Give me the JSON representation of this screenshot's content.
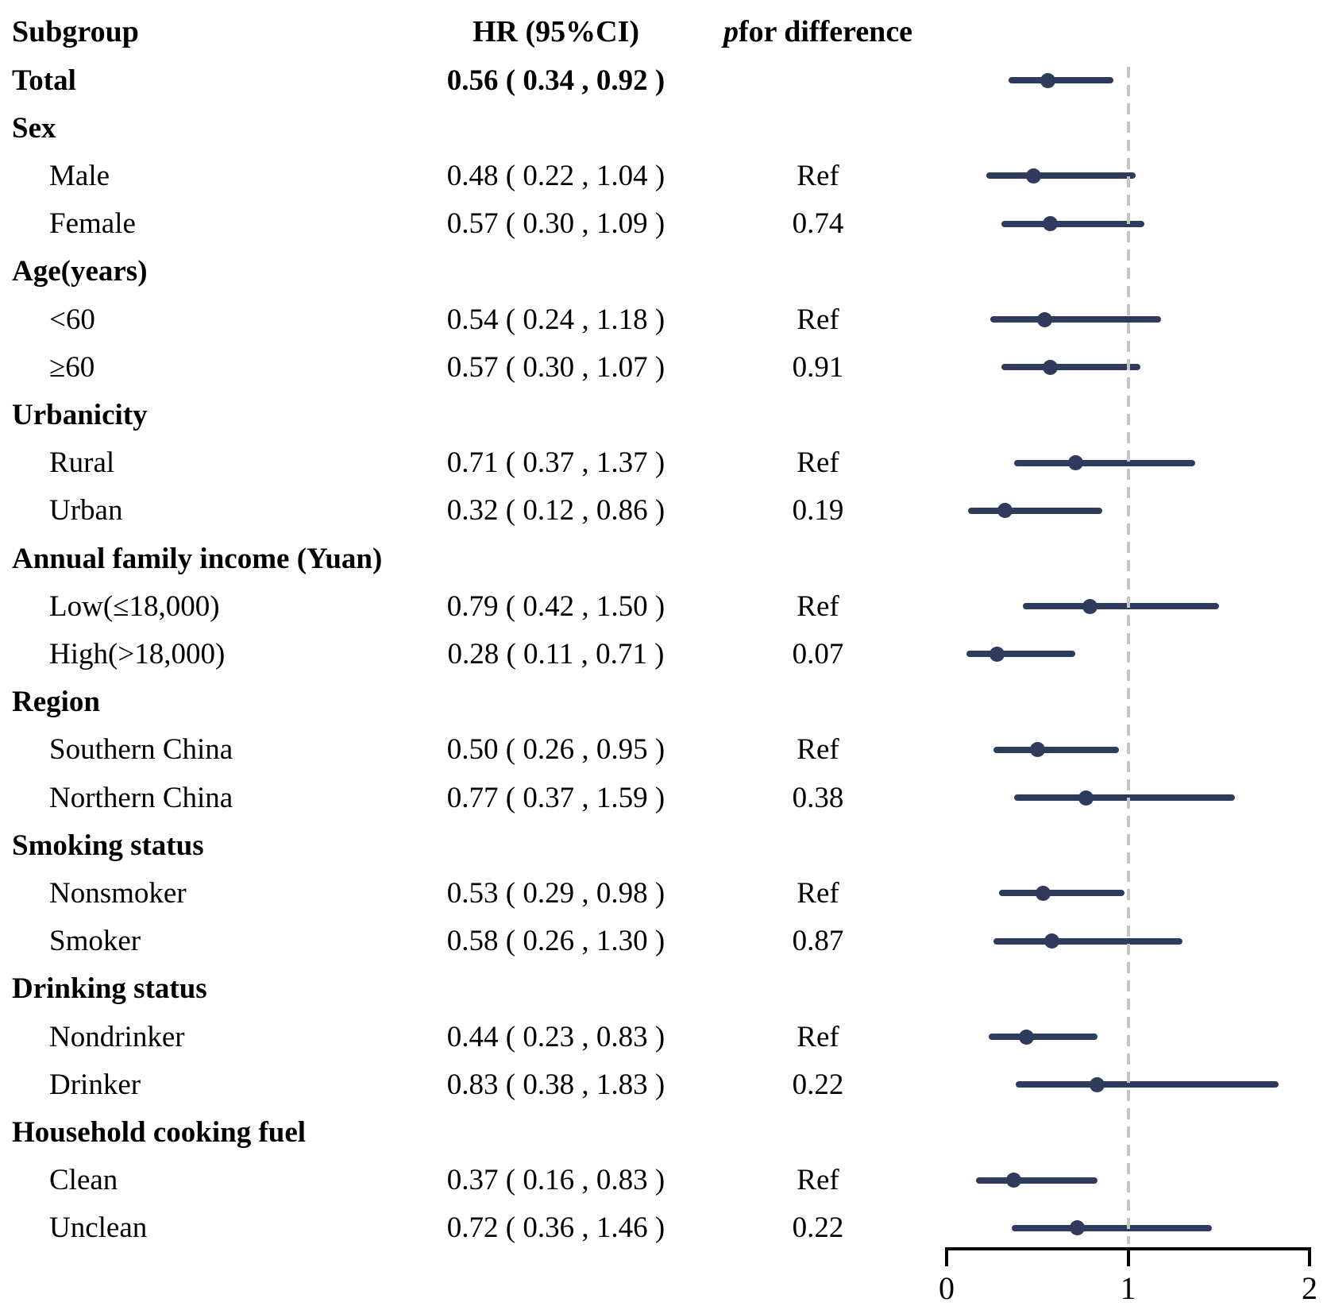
{
  "chart_data": {
    "type": "scatter",
    "subtype": "forest-plot",
    "columns": {
      "subgroup": "Subgroup",
      "hr": "HR (95%CI)",
      "p_italic": "p",
      "p_rest": " for difference"
    },
    "xlabel": "",
    "xlim": [
      0,
      2
    ],
    "x_ticks": [
      {
        "value": 0,
        "label": "0"
      },
      {
        "value": 1,
        "label": "1"
      },
      {
        "value": 2,
        "label": "2"
      }
    ],
    "ref_line": 1,
    "grid": false,
    "rows": [
      {
        "label": "Total",
        "type": "total",
        "hr_text": "0.56 ( 0.34 , 0.92 )",
        "p": "",
        "est": 0.56,
        "lo": 0.34,
        "hi": 0.92
      },
      {
        "label": "Sex",
        "type": "category"
      },
      {
        "label": "Male",
        "type": "item",
        "hr_text": "0.48 ( 0.22 , 1.04 )",
        "p": "Ref",
        "est": 0.48,
        "lo": 0.22,
        "hi": 1.04
      },
      {
        "label": "Female",
        "type": "item",
        "hr_text": "0.57 ( 0.30 , 1.09 )",
        "p": "0.74",
        "est": 0.57,
        "lo": 0.3,
        "hi": 1.09
      },
      {
        "label": "Age(years)",
        "type": "category"
      },
      {
        "label": "<60",
        "type": "item",
        "hr_text": "0.54 ( 0.24 , 1.18 )",
        "p": "Ref",
        "est": 0.54,
        "lo": 0.24,
        "hi": 1.18
      },
      {
        "label": "≥60",
        "type": "item",
        "hr_text": "0.57 ( 0.30 , 1.07 )",
        "p": "0.91",
        "est": 0.57,
        "lo": 0.3,
        "hi": 1.07
      },
      {
        "label": "Urbanicity",
        "type": "category"
      },
      {
        "label": "Rural",
        "type": "item",
        "hr_text": "0.71 ( 0.37 , 1.37 )",
        "p": "Ref",
        "est": 0.71,
        "lo": 0.37,
        "hi": 1.37
      },
      {
        "label": "Urban",
        "type": "item",
        "hr_text": "0.32 ( 0.12 , 0.86 )",
        "p": "0.19",
        "est": 0.32,
        "lo": 0.12,
        "hi": 0.86
      },
      {
        "label": "Annual family income (Yuan)",
        "type": "category"
      },
      {
        "label": "Low(≤18,000)",
        "type": "item",
        "hr_text": "0.79 ( 0.42 , 1.50 )",
        "p": "Ref",
        "est": 0.79,
        "lo": 0.42,
        "hi": 1.5
      },
      {
        "label": "High(>18,000)",
        "type": "item",
        "hr_text": "0.28 ( 0.11 , 0.71 )",
        "p": "0.07",
        "est": 0.28,
        "lo": 0.11,
        "hi": 0.71
      },
      {
        "label": "Region",
        "type": "category"
      },
      {
        "label": "Southern China",
        "type": "item",
        "hr_text": "0.50 ( 0.26 , 0.95 )",
        "p": "Ref",
        "est": 0.5,
        "lo": 0.26,
        "hi": 0.95
      },
      {
        "label": "Northern China",
        "type": "item",
        "hr_text": "0.77 ( 0.37 , 1.59 )",
        "p": "0.38",
        "est": 0.77,
        "lo": 0.37,
        "hi": 1.59
      },
      {
        "label": "Smoking status",
        "type": "category"
      },
      {
        "label": "Nonsmoker",
        "type": "item",
        "hr_text": "0.53 ( 0.29 , 0.98 )",
        "p": "Ref",
        "est": 0.53,
        "lo": 0.29,
        "hi": 0.98
      },
      {
        "label": "Smoker",
        "type": "item",
        "hr_text": "0.58 ( 0.26 , 1.30 )",
        "p": "0.87",
        "est": 0.58,
        "lo": 0.26,
        "hi": 1.3
      },
      {
        "label": "Drinking status",
        "type": "category"
      },
      {
        "label": "Nondrinker",
        "type": "item",
        "hr_text": "0.44 ( 0.23 , 0.83 )",
        "p": "Ref",
        "est": 0.44,
        "lo": 0.23,
        "hi": 0.83
      },
      {
        "label": "Drinker",
        "type": "item",
        "hr_text": "0.83 ( 0.38 , 1.83 )",
        "p": "0.22",
        "est": 0.83,
        "lo": 0.38,
        "hi": 1.83
      },
      {
        "label": "Household cooking fuel",
        "type": "category"
      },
      {
        "label": "Clean",
        "type": "item",
        "hr_text": "0.37 ( 0.16 , 0.83 )",
        "p": "Ref",
        "est": 0.37,
        "lo": 0.16,
        "hi": 0.83
      },
      {
        "label": "Unclean",
        "type": "item",
        "hr_text": "0.72 ( 0.36 , 1.46 )",
        "p": "0.22",
        "est": 0.72,
        "lo": 0.36,
        "hi": 1.46
      }
    ]
  },
  "colors": {
    "marker": "#2e3b5c",
    "ref_line": "#c6c6c6",
    "axis": "#000000",
    "text": "#000000",
    "background": "#ffffff"
  }
}
